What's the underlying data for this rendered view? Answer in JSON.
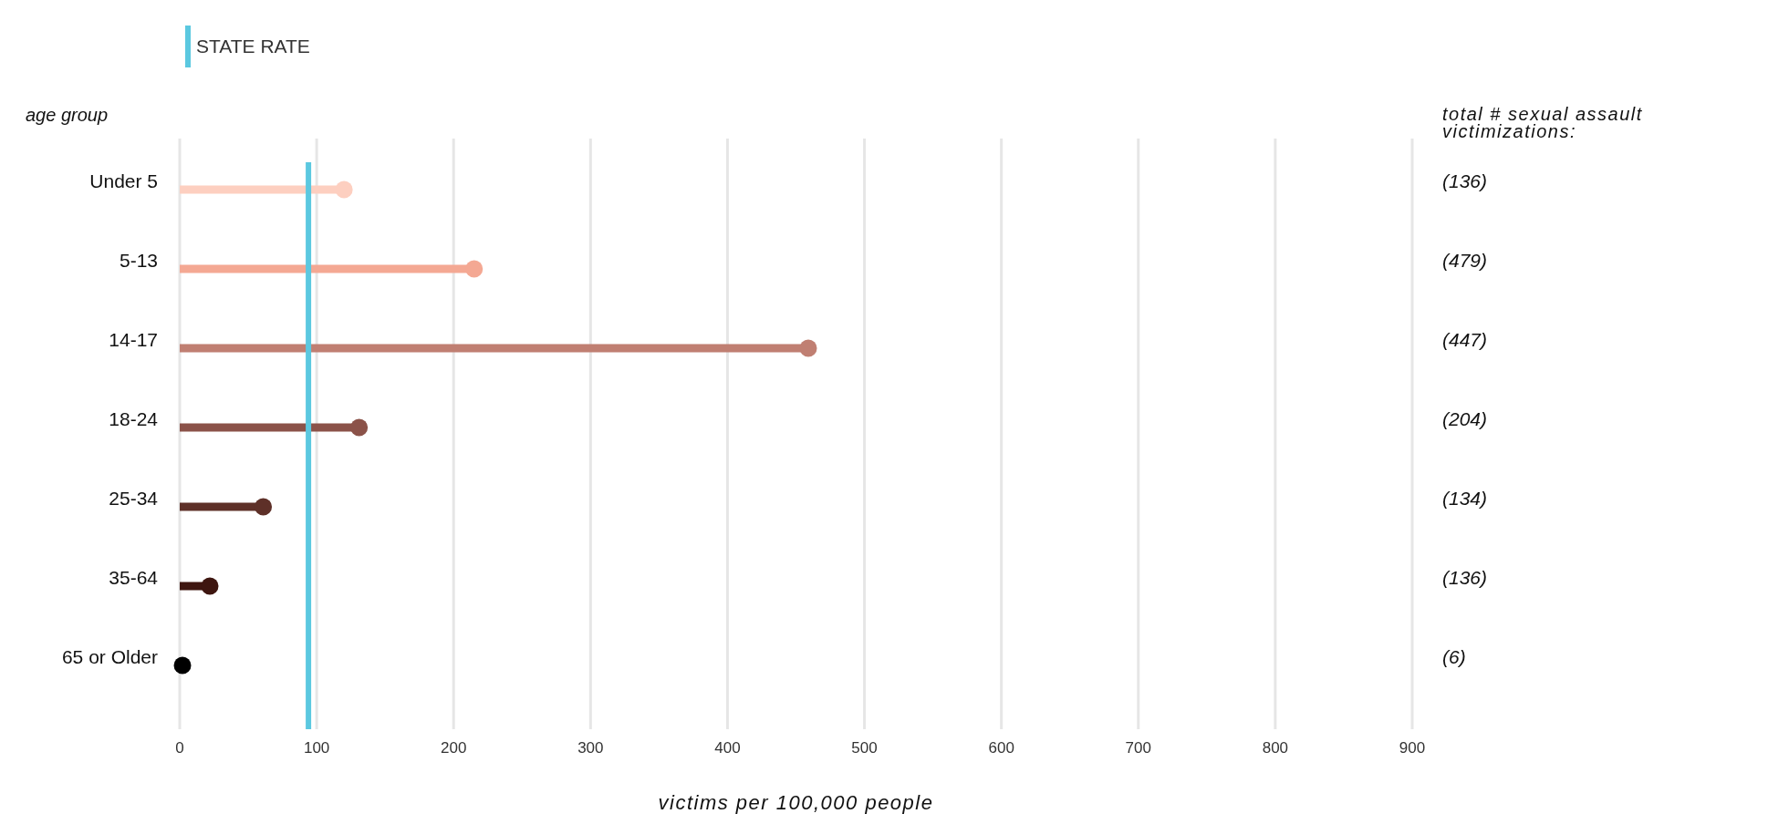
{
  "chart_data": {
    "type": "lollipop",
    "orientation": "horizontal",
    "xlabel": "victims per 100,000 people",
    "ylabel": "age group",
    "categories": [
      "Under 5",
      "5-13",
      "14-17",
      "18-24",
      "25-34",
      "35-64",
      "65 or Older"
    ],
    "values": [
      120,
      215,
      459,
      131,
      61,
      22,
      2
    ],
    "colors": [
      "#fdcfc0",
      "#f4a893",
      "#c07f72",
      "#8b5249",
      "#5e3028",
      "#3e1610",
      "#000000"
    ],
    "xlim": [
      0,
      900
    ],
    "xticks": [
      0,
      100,
      200,
      300,
      400,
      500,
      600,
      700,
      800,
      900
    ],
    "grid": "x",
    "marker": "circle",
    "ref_lines": [
      {
        "axis": "x",
        "value": 94,
        "label": "STATE RATE",
        "color": "#5bc8e0"
      }
    ],
    "legend": "top left",
    "annotations": [
      "total # sexual assault victimizations:",
      "(136)",
      "(479)",
      "(447)",
      "(204)",
      "(134)",
      "(136)",
      "(6)"
    ]
  }
}
